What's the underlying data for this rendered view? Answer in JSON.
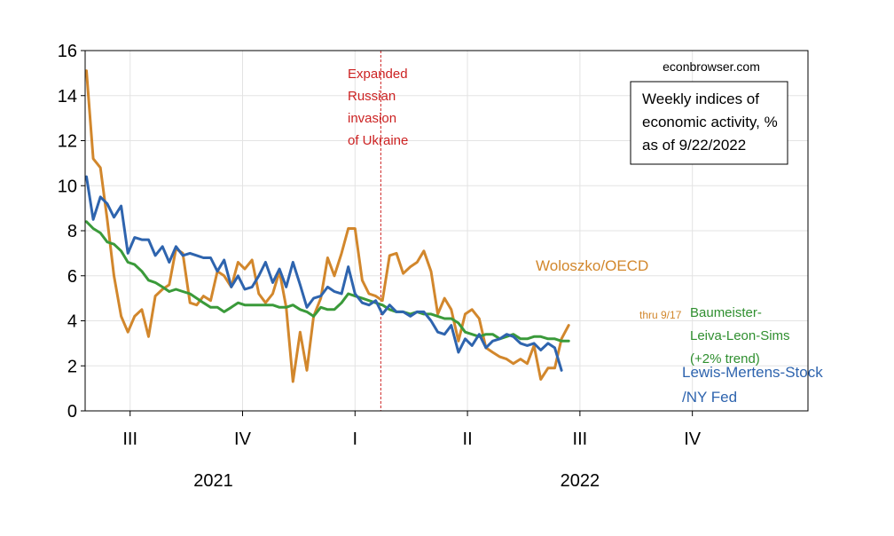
{
  "chart_data": {
    "type": "line",
    "title": "",
    "xlabel": "",
    "ylabel": "",
    "ylim": [
      0,
      16
    ],
    "yticks": [
      0,
      2,
      4,
      6,
      8,
      10,
      12,
      14,
      16
    ],
    "xlim": [
      2021.5,
      2023.107
    ],
    "grid": true,
    "quarter_ticks": [
      {
        "label": "III",
        "x": 2021.6
      },
      {
        "label": "IV",
        "x": 2021.85
      },
      {
        "label": "I",
        "x": 2022.1
      },
      {
        "label": "II",
        "x": 2022.35
      },
      {
        "label": "III",
        "x": 2022.6
      },
      {
        "label": "IV",
        "x": 2022.85
      }
    ],
    "year_labels": [
      {
        "label": "2021",
        "x": 2021.785
      },
      {
        "label": "2022",
        "x": 2022.6
      }
    ],
    "vline": {
      "x": 2022.1573,
      "label_lines": [
        "Expanded",
        "Russian",
        "invasion",
        "of Ukraine"
      ],
      "color": "#cc2222"
    },
    "source_label": "econbrowser.com",
    "legend_box": {
      "lines": [
        "Weekly indices of",
        "economic activity, %",
        "as of 9/22/2022"
      ]
    },
    "annotations": {
      "thru": "thru 9/17"
    },
    "series": [
      {
        "name": "Woloszko/OECD",
        "color": "#d2872c",
        "values": [
          [
            2021.503,
            15.1
          ],
          [
            2021.518,
            11.2
          ],
          [
            2021.534,
            10.8
          ],
          [
            2021.549,
            8.5
          ],
          [
            2021.564,
            6.0
          ],
          [
            2021.58,
            4.2
          ],
          [
            2021.595,
            3.5
          ],
          [
            2021.61,
            4.2
          ],
          [
            2021.626,
            4.5
          ],
          [
            2021.641,
            3.3
          ],
          [
            2021.656,
            5.1
          ],
          [
            2021.672,
            5.4
          ],
          [
            2021.687,
            5.6
          ],
          [
            2021.702,
            7.2
          ],
          [
            2021.717,
            7.0
          ],
          [
            2021.733,
            4.8
          ],
          [
            2021.748,
            4.7
          ],
          [
            2021.763,
            5.1
          ],
          [
            2021.779,
            4.9
          ],
          [
            2021.794,
            6.2
          ],
          [
            2021.809,
            6.0
          ],
          [
            2021.825,
            5.5
          ],
          [
            2021.84,
            6.6
          ],
          [
            2021.855,
            6.3
          ],
          [
            2021.871,
            6.7
          ],
          [
            2021.886,
            5.2
          ],
          [
            2021.901,
            4.8
          ],
          [
            2021.917,
            5.2
          ],
          [
            2021.932,
            6.2
          ],
          [
            2021.947,
            4.6
          ],
          [
            2021.962,
            1.3
          ],
          [
            2021.978,
            3.5
          ],
          [
            2021.993,
            1.8
          ],
          [
            2022.008,
            4.2
          ],
          [
            2022.024,
            5.0
          ],
          [
            2022.039,
            6.8
          ],
          [
            2022.054,
            6.0
          ],
          [
            2022.07,
            7.0
          ],
          [
            2022.085,
            8.1
          ],
          [
            2022.1,
            8.1
          ],
          [
            2022.116,
            5.8
          ],
          [
            2022.131,
            5.2
          ],
          [
            2022.146,
            5.1
          ],
          [
            2022.161,
            4.9
          ],
          [
            2022.177,
            6.9
          ],
          [
            2022.192,
            7.0
          ],
          [
            2022.207,
            6.1
          ],
          [
            2022.223,
            6.4
          ],
          [
            2022.238,
            6.6
          ],
          [
            2022.253,
            7.1
          ],
          [
            2022.269,
            6.2
          ],
          [
            2022.284,
            4.3
          ],
          [
            2022.299,
            5.0
          ],
          [
            2022.314,
            4.5
          ],
          [
            2022.33,
            3.1
          ],
          [
            2022.345,
            4.3
          ],
          [
            2022.36,
            4.5
          ],
          [
            2022.376,
            4.1
          ],
          [
            2022.391,
            2.8
          ],
          [
            2022.406,
            2.6
          ],
          [
            2022.422,
            2.4
          ],
          [
            2022.437,
            2.3
          ],
          [
            2022.452,
            2.1
          ],
          [
            2022.468,
            2.3
          ],
          [
            2022.483,
            2.1
          ],
          [
            2022.498,
            2.9
          ],
          [
            2022.513,
            1.4
          ],
          [
            2022.529,
            1.9
          ],
          [
            2022.544,
            1.9
          ],
          [
            2022.559,
            3.2
          ],
          [
            2022.575,
            3.8
          ]
        ]
      },
      {
        "name": "Baumeister-Leiva-Leon-Sims (+2% trend)",
        "label_lines": [
          "Baumeister-",
          "Leiva-Leon-Sims",
          "(+2% trend)"
        ],
        "color": "#3a9a3a",
        "values": [
          [
            2021.503,
            8.4
          ],
          [
            2021.518,
            8.1
          ],
          [
            2021.534,
            7.9
          ],
          [
            2021.549,
            7.5
          ],
          [
            2021.564,
            7.4
          ],
          [
            2021.58,
            7.1
          ],
          [
            2021.595,
            6.6
          ],
          [
            2021.61,
            6.5
          ],
          [
            2021.626,
            6.2
          ],
          [
            2021.641,
            5.8
          ],
          [
            2021.656,
            5.7
          ],
          [
            2021.672,
            5.5
          ],
          [
            2021.687,
            5.3
          ],
          [
            2021.702,
            5.4
          ],
          [
            2021.717,
            5.3
          ],
          [
            2021.733,
            5.2
          ],
          [
            2021.748,
            5.0
          ],
          [
            2021.763,
            4.8
          ],
          [
            2021.779,
            4.6
          ],
          [
            2021.794,
            4.6
          ],
          [
            2021.809,
            4.4
          ],
          [
            2021.825,
            4.6
          ],
          [
            2021.84,
            4.8
          ],
          [
            2021.855,
            4.7
          ],
          [
            2021.871,
            4.7
          ],
          [
            2021.886,
            4.7
          ],
          [
            2021.901,
            4.7
          ],
          [
            2021.917,
            4.7
          ],
          [
            2021.932,
            4.6
          ],
          [
            2021.947,
            4.6
          ],
          [
            2021.962,
            4.7
          ],
          [
            2021.978,
            4.5
          ],
          [
            2021.993,
            4.4
          ],
          [
            2022.008,
            4.2
          ],
          [
            2022.024,
            4.6
          ],
          [
            2022.039,
            4.5
          ],
          [
            2022.054,
            4.5
          ],
          [
            2022.07,
            4.8
          ],
          [
            2022.085,
            5.2
          ],
          [
            2022.1,
            5.1
          ],
          [
            2022.116,
            5.0
          ],
          [
            2022.131,
            4.9
          ],
          [
            2022.146,
            4.8
          ],
          [
            2022.161,
            4.7
          ],
          [
            2022.177,
            4.5
          ],
          [
            2022.192,
            4.4
          ],
          [
            2022.207,
            4.4
          ],
          [
            2022.223,
            4.3
          ],
          [
            2022.238,
            4.4
          ],
          [
            2022.253,
            4.3
          ],
          [
            2022.269,
            4.3
          ],
          [
            2022.284,
            4.2
          ],
          [
            2022.299,
            4.1
          ],
          [
            2022.314,
            4.1
          ],
          [
            2022.33,
            3.9
          ],
          [
            2022.345,
            3.5
          ],
          [
            2022.36,
            3.4
          ],
          [
            2022.376,
            3.3
          ],
          [
            2022.391,
            3.4
          ],
          [
            2022.406,
            3.4
          ],
          [
            2022.422,
            3.2
          ],
          [
            2022.437,
            3.3
          ],
          [
            2022.452,
            3.4
          ],
          [
            2022.468,
            3.2
          ],
          [
            2022.483,
            3.2
          ],
          [
            2022.498,
            3.3
          ],
          [
            2022.513,
            3.3
          ],
          [
            2022.529,
            3.2
          ],
          [
            2022.544,
            3.2
          ],
          [
            2022.559,
            3.1
          ],
          [
            2022.575,
            3.1
          ]
        ]
      },
      {
        "name": "Lewis-Mertens-Stock /NY Fed",
        "label_lines": [
          "Lewis-Mertens-Stock",
          "/NY Fed"
        ],
        "color": "#2e64ae",
        "values": [
          [
            2021.503,
            10.4
          ],
          [
            2021.518,
            8.5
          ],
          [
            2021.534,
            9.5
          ],
          [
            2021.549,
            9.2
          ],
          [
            2021.564,
            8.6
          ],
          [
            2021.58,
            9.1
          ],
          [
            2021.595,
            7.0
          ],
          [
            2021.61,
            7.7
          ],
          [
            2021.626,
            7.6
          ],
          [
            2021.641,
            7.6
          ],
          [
            2021.656,
            6.9
          ],
          [
            2021.672,
            7.3
          ],
          [
            2021.687,
            6.6
          ],
          [
            2021.702,
            7.3
          ],
          [
            2021.717,
            6.9
          ],
          [
            2021.733,
            7.0
          ],
          [
            2021.748,
            6.9
          ],
          [
            2021.763,
            6.8
          ],
          [
            2021.779,
            6.8
          ],
          [
            2021.794,
            6.2
          ],
          [
            2021.809,
            6.7
          ],
          [
            2021.825,
            5.5
          ],
          [
            2021.84,
            6.0
          ],
          [
            2021.855,
            5.4
          ],
          [
            2021.871,
            5.5
          ],
          [
            2021.886,
            6.0
          ],
          [
            2021.901,
            6.6
          ],
          [
            2021.917,
            5.7
          ],
          [
            2021.932,
            6.3
          ],
          [
            2021.947,
            5.5
          ],
          [
            2021.962,
            6.6
          ],
          [
            2021.978,
            5.6
          ],
          [
            2021.993,
            4.6
          ],
          [
            2022.008,
            5.0
          ],
          [
            2022.024,
            5.1
          ],
          [
            2022.039,
            5.5
          ],
          [
            2022.054,
            5.3
          ],
          [
            2022.07,
            5.2
          ],
          [
            2022.085,
            6.4
          ],
          [
            2022.1,
            5.2
          ],
          [
            2022.116,
            4.8
          ],
          [
            2022.131,
            4.7
          ],
          [
            2022.146,
            4.9
          ],
          [
            2022.161,
            4.3
          ],
          [
            2022.177,
            4.7
          ],
          [
            2022.192,
            4.4
          ],
          [
            2022.207,
            4.4
          ],
          [
            2022.223,
            4.2
          ],
          [
            2022.238,
            4.4
          ],
          [
            2022.253,
            4.4
          ],
          [
            2022.269,
            4.0
          ],
          [
            2022.284,
            3.5
          ],
          [
            2022.299,
            3.4
          ],
          [
            2022.314,
            3.8
          ],
          [
            2022.33,
            2.6
          ],
          [
            2022.345,
            3.2
          ],
          [
            2022.36,
            2.9
          ],
          [
            2022.376,
            3.4
          ],
          [
            2022.391,
            2.8
          ],
          [
            2022.406,
            3.1
          ],
          [
            2022.422,
            3.2
          ],
          [
            2022.437,
            3.4
          ],
          [
            2022.452,
            3.3
          ],
          [
            2022.468,
            3.0
          ],
          [
            2022.483,
            2.9
          ],
          [
            2022.498,
            3.0
          ],
          [
            2022.513,
            2.7
          ],
          [
            2022.529,
            3.0
          ],
          [
            2022.544,
            2.8
          ],
          [
            2022.559,
            1.8
          ]
        ]
      }
    ]
  }
}
